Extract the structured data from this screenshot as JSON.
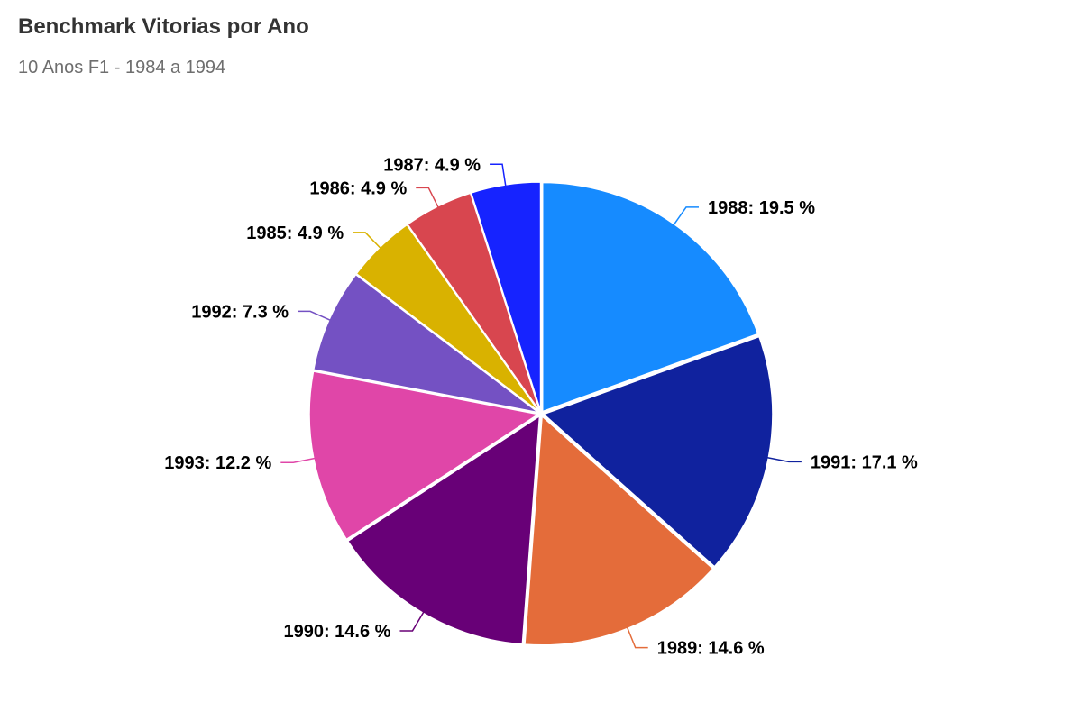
{
  "header": {
    "title": "Benchmark Vitorias por Ano",
    "subtitle": "10 Anos F1 - 1984 a 1994"
  },
  "chart_data": {
    "type": "pie",
    "title": "Benchmark Vitorias por Ano",
    "subtitle": "10 Anos F1 - 1984 a 1994",
    "start_angle_deg": 0,
    "direction": "clockwise",
    "label_unit": "%",
    "slices": [
      {
        "label": "1988",
        "value": 19.5,
        "color": "#168bff"
      },
      {
        "label": "1991",
        "value": 17.1,
        "color": "#10229e"
      },
      {
        "label": "1989",
        "value": 14.6,
        "color": "#e46c3a"
      },
      {
        "label": "1990",
        "value": 14.6,
        "color": "#680077"
      },
      {
        "label": "1993",
        "value": 12.2,
        "color": "#e046a8"
      },
      {
        "label": "1992",
        "value": 7.3,
        "color": "#7451c3"
      },
      {
        "label": "1985",
        "value": 4.9,
        "color": "#d9b200"
      },
      {
        "label": "1986",
        "value": 4.9,
        "color": "#d8464f"
      },
      {
        "label": "1987",
        "value": 4.9,
        "color": "#1623ff"
      }
    ]
  }
}
